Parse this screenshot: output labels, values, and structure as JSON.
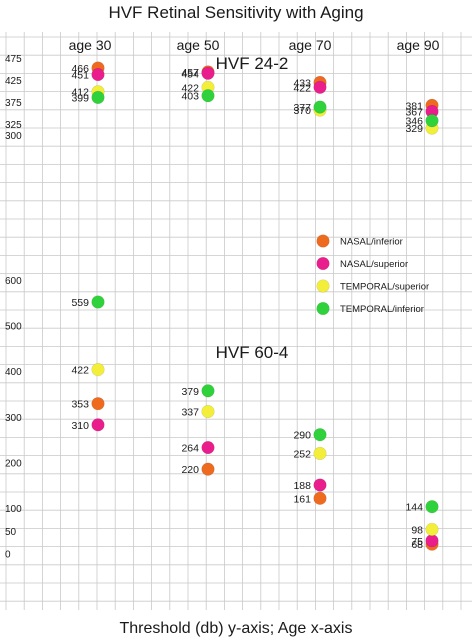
{
  "chart_data": {
    "type": "scatter",
    "title": "HVF Retinal Sensitivity with Aging",
    "footer": "Threshold (db) y-axis; Age x-axis",
    "x_categories": [
      "age 30",
      "age 50",
      "age 70",
      "age 90"
    ],
    "legend": [
      {
        "name": "NASAL/inferior",
        "color": "#ee6a1f"
      },
      {
        "name": "NASAL/superior",
        "color": "#e91e8c"
      },
      {
        "name": "TEMPORAL/superior",
        "color": "#f2ee3a"
      },
      {
        "name": "TEMPORAL/inferior",
        "color": "#2fd23a"
      }
    ],
    "panels": [
      {
        "name": "HVF 24-2",
        "y_ticks": [
          475,
          425,
          375,
          325,
          300
        ],
        "series": [
          {
            "name": "NASAL/inferior",
            "color": "#ee6a1f",
            "values": [
              466,
              457,
              433,
              381
            ]
          },
          {
            "name": "NASAL/superior",
            "color": "#e91e8c",
            "values": [
              451,
              454,
              422,
              367
            ]
          },
          {
            "name": "TEMPORAL/superior",
            "color": "#f2ee3a",
            "values": [
              412,
              422,
              370,
              329
            ]
          },
          {
            "name": "TEMPORAL/inferior",
            "color": "#2fd23a",
            "values": [
              399,
              403,
              377,
              346
            ]
          }
        ]
      },
      {
        "name": "HVF 60-4",
        "y_ticks": [
          600,
          500,
          400,
          300,
          200,
          100,
          50,
          0
        ],
        "series": [
          {
            "name": "NASAL/inferior",
            "color": "#ee6a1f",
            "values": [
              353,
              220,
              161,
              68
            ]
          },
          {
            "name": "NASAL/superior",
            "color": "#e91e8c",
            "values": [
              310,
              264,
              188,
              75
            ]
          },
          {
            "name": "TEMPORAL/superior",
            "color": "#f2ee3a",
            "values": [
              422,
              337,
              252,
              98
            ]
          },
          {
            "name": "TEMPORAL/inferior",
            "color": "#2fd23a",
            "values": [
              559,
              379,
              290,
              144
            ]
          }
        ]
      }
    ]
  }
}
